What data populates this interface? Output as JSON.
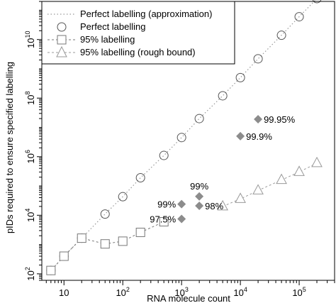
{
  "chart_data": {
    "type": "scatter",
    "xlabel": "RNA molecule count",
    "ylabel": "pIDs required to ensure specified labelling",
    "x_scale": "log",
    "y_scale": "log",
    "xlim": [
      4.2,
      400000
    ],
    "ylim": [
      60,
      200000000000
    ],
    "x_ticks": [
      {
        "value": 10,
        "label": "10"
      },
      {
        "value": 100,
        "label": "10",
        "exp": "2"
      },
      {
        "value": 1000,
        "label": "10",
        "exp": "3"
      },
      {
        "value": 10000,
        "label": "10",
        "exp": "4"
      },
      {
        "value": 100000,
        "label": "10",
        "exp": "5"
      }
    ],
    "y_ticks": [
      {
        "value": 100,
        "label": "10",
        "exp": "2"
      },
      {
        "value": 10000,
        "label": "10",
        "exp": "4"
      },
      {
        "value": 1000000,
        "label": "10",
        "exp": "6"
      },
      {
        "value": 100000000,
        "label": "10",
        "exp": "8"
      },
      {
        "value": 10000000000,
        "label": "10",
        "exp": "10"
      }
    ],
    "legend_position": "top-left",
    "grid": false,
    "series": [
      {
        "name": "Perfect labelling (approximation)",
        "style": "dotted-line",
        "color": "#999999",
        "x": [
          6,
          10,
          20,
          50,
          100,
          200,
          500,
          1000,
          2000,
          5000,
          10000,
          20000,
          50000,
          100000,
          200000
        ],
        "y": [
          130,
          400,
          1650,
          11000,
          43000,
          190000,
          1100000,
          4500000,
          20000000,
          120000000,
          500000000,
          2200000000,
          14000000000,
          60000000000,
          250000000000
        ]
      },
      {
        "name": "Perfect labelling",
        "marker": "circle",
        "color": "#555555",
        "x": [
          6,
          10,
          20,
          50,
          100,
          200,
          500,
          1000,
          2000,
          5000,
          10000,
          20000,
          50000,
          100000,
          200000
        ],
        "y": [
          130,
          400,
          1650,
          11000,
          43000,
          190000,
          1100000,
          4500000,
          20000000,
          120000000,
          500000000,
          2200000000,
          14000000000,
          60000000000,
          250000000000
        ]
      },
      {
        "name": "95% labelling",
        "marker": "square",
        "line": "dashed",
        "color": "#777777",
        "x": [
          6,
          10,
          20,
          50,
          100,
          200,
          500
        ],
        "y": [
          130,
          400,
          1650,
          1050,
          1300,
          2600,
          6000
        ]
      },
      {
        "name": "95% labelling (rough bound)",
        "marker": "triangle",
        "line": "dashed",
        "color": "#999999",
        "x": [
          5000,
          10000,
          20000,
          50000,
          100000,
          200000
        ],
        "y": [
          20000,
          36000,
          70000,
          160000,
          300000,
          600000
        ]
      }
    ],
    "annotations": [
      {
        "x": 1000,
        "y": 24000,
        "label": "99%",
        "side": "left"
      },
      {
        "x": 1000,
        "y": 7500,
        "label": "97.5%",
        "side": "left"
      },
      {
        "x": 2000,
        "y": 44000,
        "label": "99%",
        "side": "above"
      },
      {
        "x": 2000,
        "y": 21000,
        "label": "98%",
        "side": "right"
      },
      {
        "x": 10000,
        "y": 5000000,
        "label": "99.9%",
        "side": "right"
      },
      {
        "x": 20000,
        "y": 19000000,
        "label": "99.95%",
        "side": "right"
      }
    ]
  }
}
